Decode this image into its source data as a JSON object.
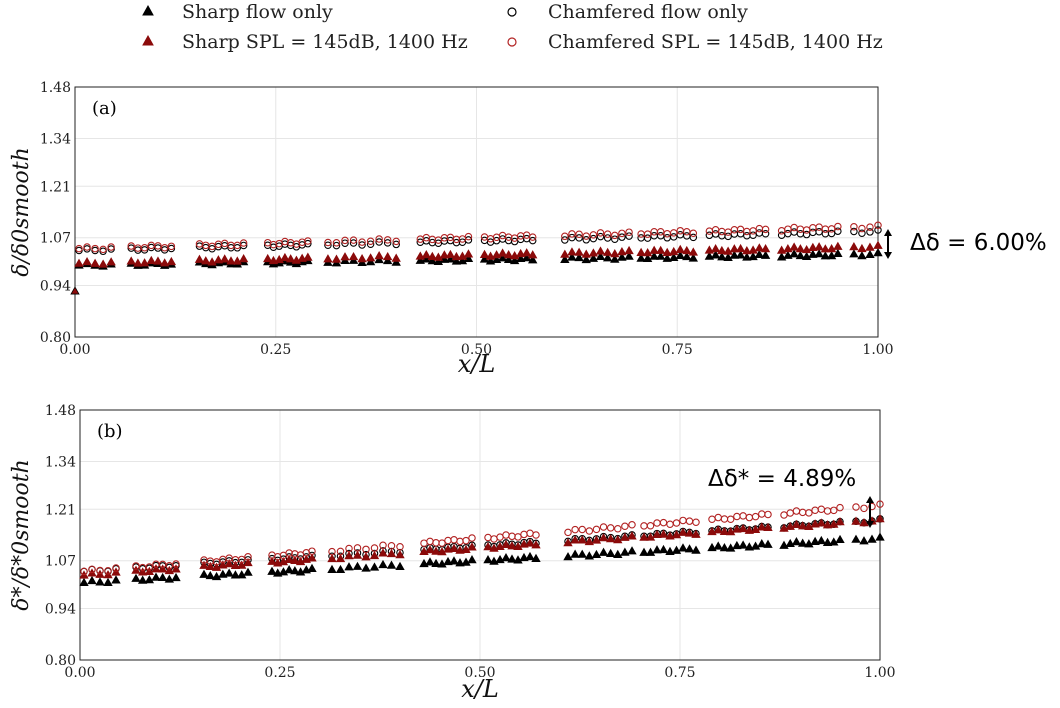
{
  "legend": [
    {
      "name": "Sharp flow only",
      "marker": "triangle",
      "fill": "#000000",
      "stroke": "#000000"
    },
    {
      "name": "Chamfered flow only",
      "marker": "circle",
      "fill": "none",
      "stroke": "#000000"
    },
    {
      "name": "Sharp SPL = 145dB, 1400 Hz",
      "marker": "triangle",
      "fill": "#8b0a0a",
      "stroke": "#8b0a0a"
    },
    {
      "name": "Chamfered SPL = 145dB, 1400 Hz",
      "marker": "circle",
      "fill": "none",
      "stroke": "#b22222"
    }
  ],
  "chart_data": [
    {
      "type": "scatter",
      "panel_label": "(a)",
      "xlabel": "x/L",
      "ylabel": "δ/δ0smooth",
      "xlim": [
        0,
        1
      ],
      "ylim": [
        0.8,
        1.48
      ],
      "xticks": [
        "0.00",
        "0.25",
        "0.50",
        "0.75",
        "1.00"
      ],
      "yticks": [
        "0.80",
        "0.94",
        "1.07",
        "1.21",
        "1.34",
        "1.48"
      ],
      "grid": true,
      "annotation": "Δδ = 6.00%",
      "series": [
        {
          "name": "Sharp flow only",
          "start": 0.995,
          "end": 1.025
        },
        {
          "name": "Chamfered flow only",
          "start": 1.035,
          "end": 1.087
        },
        {
          "name": "Sharp SPL = 145dB, 1400 Hz",
          "start": 1.0,
          "end": 1.045
        },
        {
          "name": "Chamfered SPL = 145dB, 1400 Hz",
          "start": 1.04,
          "end": 1.1
        }
      ]
    },
    {
      "type": "scatter",
      "panel_label": "(b)",
      "xlabel": "x/L",
      "ylabel": "δ*/δ*0smooth",
      "xlim": [
        0,
        1
      ],
      "ylim": [
        0.8,
        1.48
      ],
      "xticks": [
        "0.00",
        "0.25",
        "0.50",
        "0.75",
        "1.00"
      ],
      "yticks": [
        "0.80",
        "0.94",
        "1.07",
        "1.21",
        "1.34",
        "1.48"
      ],
      "grid": true,
      "annotation": "Δδ* = 4.89%",
      "series": [
        {
          "name": "Sharp flow only",
          "start": 1.01,
          "end": 1.13
        },
        {
          "name": "Chamfered flow only",
          "start": 1.04,
          "end": 1.18
        },
        {
          "name": "Sharp SPL = 145dB, 1400 Hz",
          "start": 1.03,
          "end": 1.18
        },
        {
          "name": "Chamfered SPL = 145dB, 1400 Hz",
          "start": 1.04,
          "end": 1.22
        }
      ]
    }
  ]
}
